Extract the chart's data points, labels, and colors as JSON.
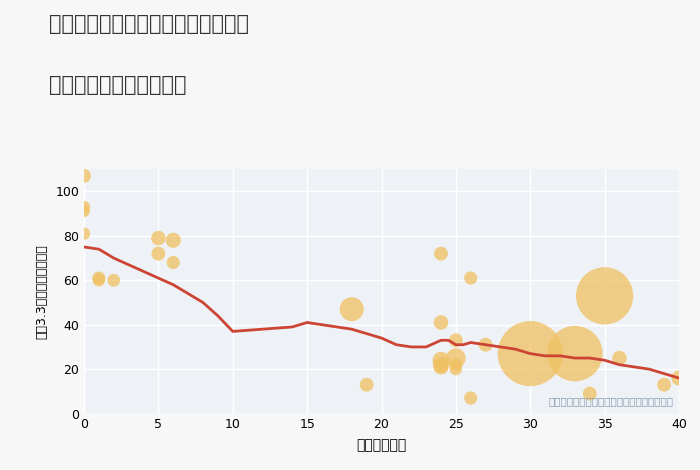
{
  "title_line1": "福岡県北九州市門司区丸山吉野町の",
  "title_line2": "築年数別中古戸建て価格",
  "xlabel": "築年数（年）",
  "ylabel": "坪（3.3㎡）単価（万円）",
  "annotation": "円の大きさは、取引のあった物件面積を示す",
  "xlim": [
    0,
    40
  ],
  "ylim": [
    0,
    110
  ],
  "xticks": [
    0,
    5,
    10,
    15,
    20,
    25,
    30,
    35,
    40
  ],
  "yticks": [
    0,
    20,
    40,
    60,
    80,
    100
  ],
  "background_color": "#f7f7f7",
  "plot_bg_color": "#eef2f7",
  "grid_color": "#ffffff",
  "bubble_color": "#f0c060",
  "bubble_alpha": 0.75,
  "line_color": "#cc4433",
  "line_width": 2.0,
  "scatter_x": [
    0,
    0,
    0,
    0,
    1,
    1,
    2,
    5,
    5,
    6,
    6,
    18,
    19,
    24,
    24,
    24,
    24,
    24,
    25,
    25,
    25,
    25,
    26,
    26,
    27,
    30,
    33,
    34,
    35,
    36,
    39,
    40
  ],
  "scatter_y": [
    107,
    93,
    91,
    81,
    61,
    60,
    60,
    79,
    72,
    78,
    68,
    47,
    13,
    72,
    41,
    24,
    22,
    21,
    33,
    25,
    22,
    20,
    61,
    7,
    31,
    27,
    27,
    9,
    53,
    25,
    13,
    16
  ],
  "scatter_size": [
    100,
    80,
    70,
    80,
    90,
    80,
    85,
    110,
    100,
    120,
    90,
    300,
    100,
    100,
    110,
    150,
    130,
    120,
    100,
    200,
    90,
    80,
    90,
    90,
    100,
    2200,
    1600,
    100,
    1700,
    110,
    100,
    120
  ],
  "line_x": [
    0,
    0.5,
    1,
    1.5,
    2,
    3,
    4,
    5,
    6,
    7,
    8,
    9,
    10,
    11,
    12,
    13,
    14,
    15,
    16,
    17,
    18,
    19,
    20,
    21,
    22,
    23,
    24,
    24.5,
    25,
    25.5,
    26,
    27,
    28,
    29,
    30,
    31,
    32,
    33,
    34,
    35,
    36,
    37,
    38,
    39,
    40
  ],
  "line_y": [
    75,
    74.5,
    74,
    72,
    70,
    67,
    64,
    61,
    58,
    54,
    50,
    44,
    37,
    37.5,
    38,
    38.5,
    39,
    41,
    40,
    39,
    38,
    36,
    34,
    31,
    30,
    30,
    33,
    33,
    31,
    31,
    32,
    31,
    30,
    29,
    27,
    26,
    26,
    25,
    25,
    24,
    22,
    21,
    20,
    18,
    16
  ]
}
